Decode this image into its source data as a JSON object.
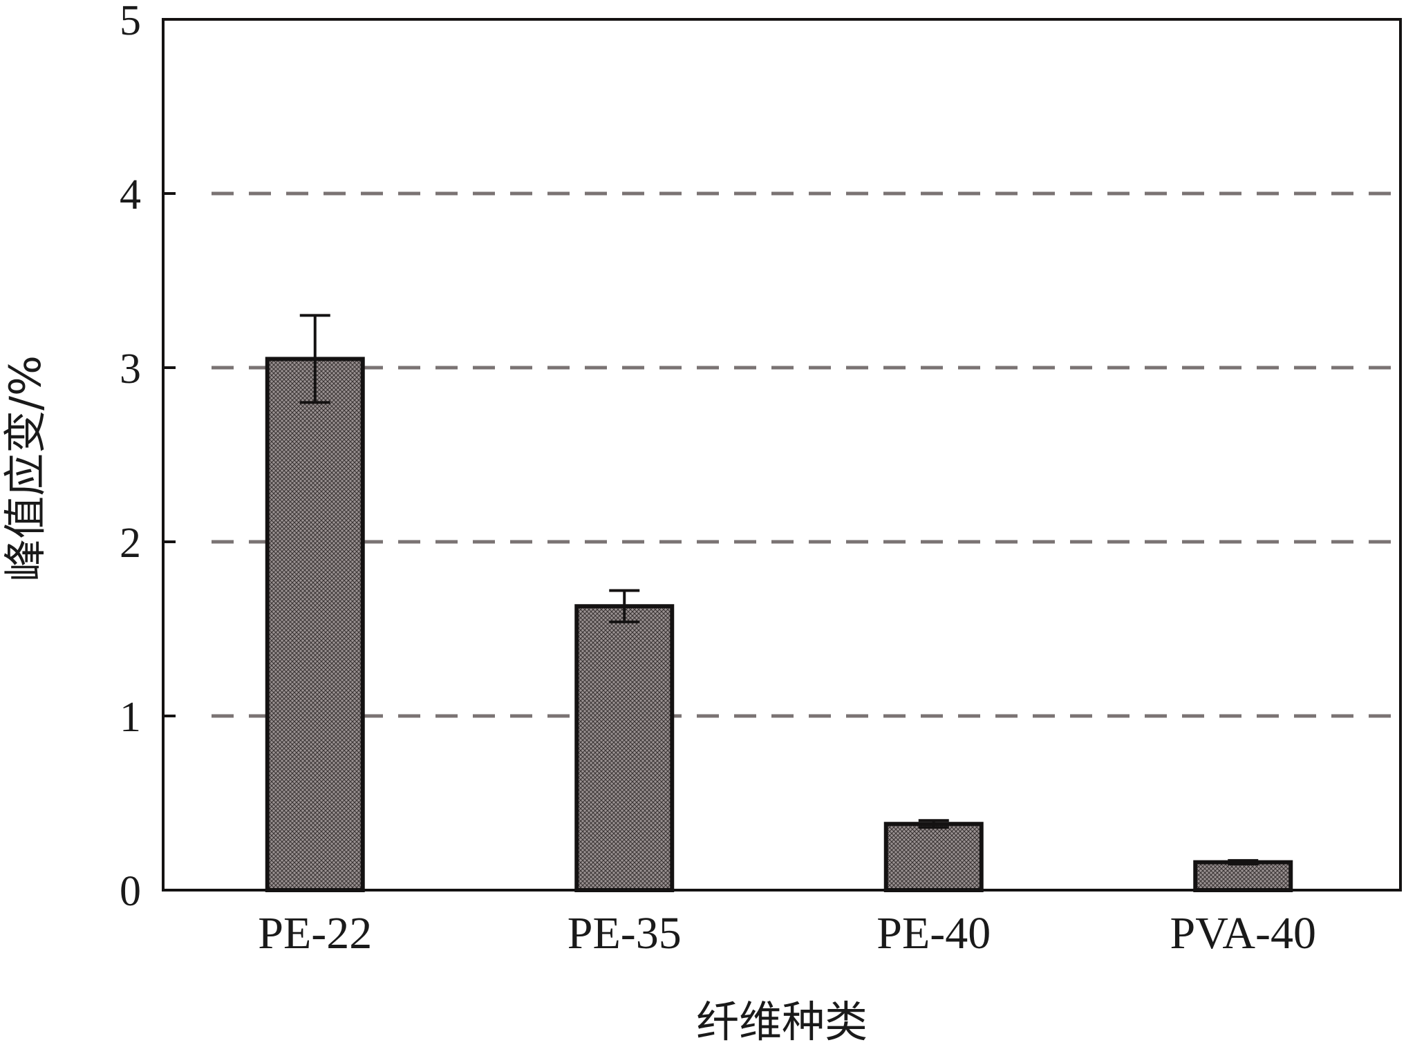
{
  "chart_data": {
    "type": "bar",
    "title": "",
    "xlabel": "纤维种类",
    "ylabel": "峰值应变/%",
    "categories": [
      "PE-22",
      "PE-35",
      "PE-40",
      "PVA-40"
    ],
    "values": [
      3.05,
      1.63,
      0.38,
      0.16
    ],
    "error": [
      0.25,
      0.09,
      0.02,
      0.01
    ],
    "ylim": [
      0,
      5
    ],
    "yticks": [
      0,
      1,
      2,
      3,
      4,
      5
    ],
    "grid": {
      "show": true,
      "axis": "y",
      "style": "dashed",
      "values": [
        1,
        2,
        3,
        4
      ]
    },
    "legend": "none",
    "colors": {
      "bar_fill": "#8c8484",
      "bar_stroke": "#141212",
      "grid": "#7a7373",
      "axis": "#141212"
    }
  }
}
